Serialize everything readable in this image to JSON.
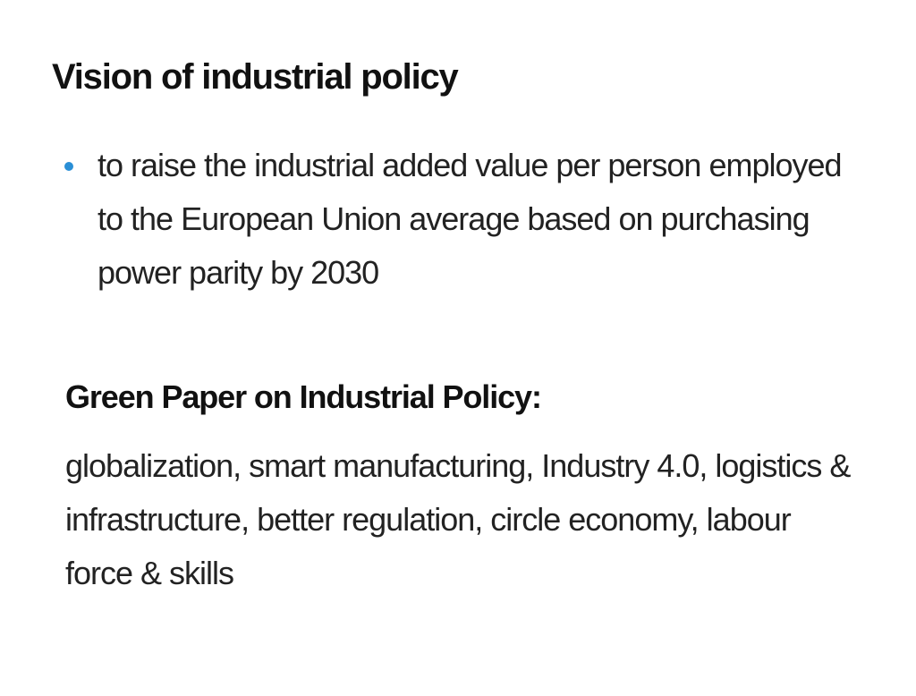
{
  "slide": {
    "title": "Vision of industrial policy",
    "bullets": [
      {
        "text": "to raise the industrial added value per person employed to the European Union average based on purchasing power parity by 2030"
      }
    ],
    "section": {
      "heading": "Green Paper on Industrial Policy:",
      "body": "globalization, smart manufacturing, Industry 4.0, logistics & infrastructure, better regulation, circle economy, labour force & skills"
    }
  },
  "colors": {
    "bullet_accent": "#2a8fd6",
    "text": "#222222",
    "background": "#ffffff"
  }
}
